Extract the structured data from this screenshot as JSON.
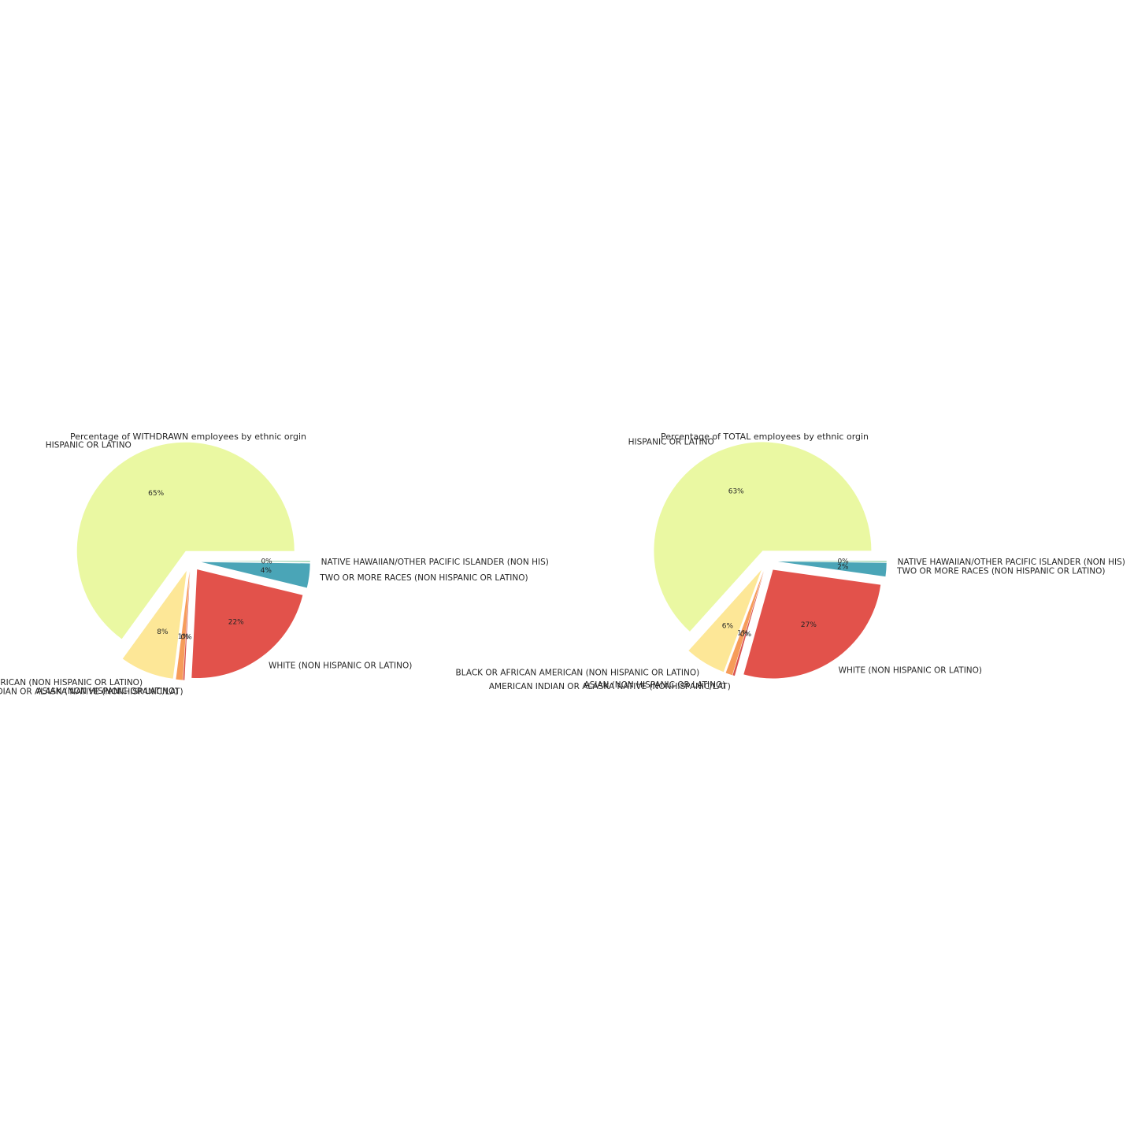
{
  "chart_data": [
    {
      "type": "pie",
      "title": "Percentage of WITHDRAWN employees by ethnic orgin",
      "slices": [
        {
          "label": "HISPANIC OR LATINO",
          "value": 65,
          "pct_label": "65%",
          "color": "#eaf8a2"
        },
        {
          "label": "BLACK OR AFRICAN AMERICAN (NON HISPANIC OR LATINO)",
          "value": 8,
          "pct_label": "8%",
          "color": "#fde797"
        },
        {
          "label": "ASIAN (NON HISPANIC OR LATINO)",
          "value": 1,
          "pct_label": "1%",
          "color": "#f69c5a"
        },
        {
          "label": "AMERICAN INDIAN OR ALASKA NATIVE (NONHISPANIC/LAT)",
          "value": 0.2,
          "pct_label": "0%",
          "color": "#d9534f"
        },
        {
          "label": "WHITE (NON HISPANIC OR LATINO)",
          "value": 22,
          "pct_label": "22%",
          "color": "#e2524b"
        },
        {
          "label": "TWO OR MORE RACES (NON HISPANIC OR LATINO)",
          "value": 3.6,
          "pct_label": "4%",
          "color": "#4aa5b7"
        },
        {
          "label": "NATIVE HAWAIIAN/OTHER PACIFIC ISLANDER (NON HIS)",
          "value": 0.2,
          "pct_label": "0%",
          "color": "#a6d9b8"
        }
      ]
    },
    {
      "type": "pie",
      "title": "Percentage of TOTAL employees by ethnic orgin",
      "slices": [
        {
          "label": "HISPANIC OR LATINO",
          "value": 63,
          "pct_label": "63%",
          "color": "#eaf8a2"
        },
        {
          "label": "BLACK OR AFRICAN AMERICAN (NON HISPANIC OR LATINO)",
          "value": 6,
          "pct_label": "6%",
          "color": "#fde797"
        },
        {
          "label": "ASIAN (NON HISPANIC OR LATINO)",
          "value": 1,
          "pct_label": "1%",
          "color": "#f69c5a"
        },
        {
          "label": "AMERICAN INDIAN OR ALASKA NATIVE (NONHISPANIC/LAT)",
          "value": 0.3,
          "pct_label": "0%",
          "color": "#d9534f"
        },
        {
          "label": "WHITE (NON HISPANIC OR LATINO)",
          "value": 27,
          "pct_label": "27%",
          "color": "#e2524b"
        },
        {
          "label": "TWO OR MORE RACES (NON HISPANIC OR LATINO)",
          "value": 2,
          "pct_label": "2%",
          "color": "#4aa5b7"
        },
        {
          "label": "NATIVE HAWAIIAN/OTHER PACIFIC ISLANDER (NON HIS)",
          "value": 0.2,
          "pct_label": "0%",
          "color": "#a6d9b8"
        }
      ]
    }
  ]
}
